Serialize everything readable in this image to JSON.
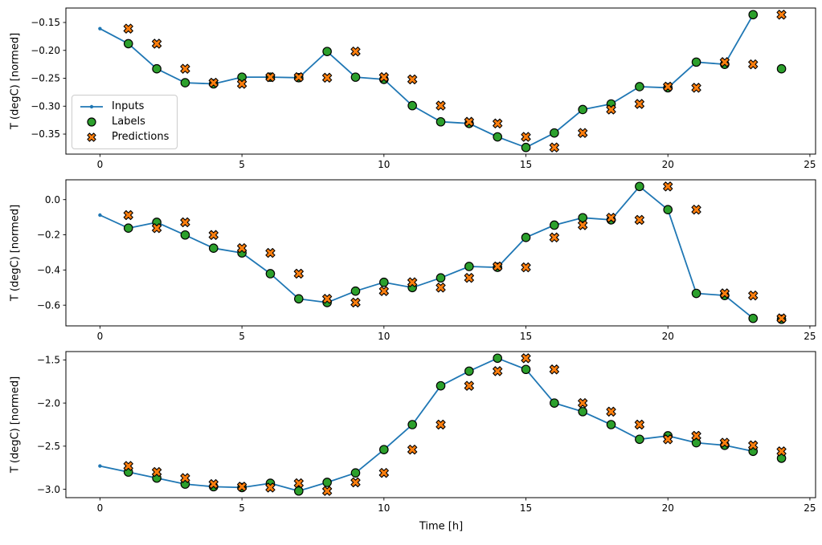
{
  "colors": {
    "inputs": "#1f77b4",
    "labels": "#2ca02c",
    "predictions": "#ff7f0e",
    "marker_edge": "#000000",
    "axis": "#000000",
    "background": "#ffffff"
  },
  "legend": {
    "items": [
      {
        "name": "inputs",
        "label": "Inputs",
        "marker": "line-dot"
      },
      {
        "name": "labels",
        "label": "Labels",
        "marker": "circle"
      },
      {
        "name": "predictions",
        "label": "Predictions",
        "marker": "X"
      }
    ]
  },
  "axes": {
    "xlabel": "Time [h]",
    "xlim": [
      -1.2,
      25.2
    ],
    "xticks": {
      "values": [
        0,
        5,
        10,
        15,
        20,
        25
      ],
      "labels": [
        "0",
        "5",
        "10",
        "15",
        "20",
        "25"
      ]
    }
  },
  "chart_data": [
    {
      "type": "line+scatter",
      "ylabel": "T (degC) [normed]",
      "yticks": {
        "values": [
          -0.15,
          -0.2,
          -0.25,
          -0.3,
          -0.35
        ],
        "labels": [
          "−0.15",
          "−0.20",
          "−0.25",
          "−0.30",
          "−0.35"
        ]
      },
      "series": [
        {
          "name": "Inputs",
          "type": "line",
          "marker": "dot",
          "color": "#1f77b4",
          "x": [
            0,
            1,
            2,
            3,
            4,
            5,
            6,
            7,
            8,
            9,
            10,
            11,
            12,
            13,
            14,
            15,
            16,
            17,
            18,
            19,
            20,
            21,
            22,
            23
          ],
          "y": [
            -0.161,
            -0.188,
            -0.233,
            -0.258,
            -0.26,
            -0.248,
            -0.248,
            -0.249,
            -0.202,
            -0.248,
            -0.252,
            -0.299,
            -0.328,
            -0.331,
            -0.355,
            -0.374,
            -0.348,
            -0.306,
            -0.296,
            -0.265,
            -0.267,
            -0.221,
            -0.225,
            -0.136
          ]
        },
        {
          "name": "Labels",
          "type": "scatter",
          "marker": "circle",
          "color": "#2ca02c",
          "x": [
            1,
            2,
            3,
            4,
            5,
            6,
            7,
            8,
            9,
            10,
            11,
            12,
            13,
            14,
            15,
            16,
            17,
            18,
            19,
            20,
            21,
            22,
            23,
            24
          ],
          "y": [
            -0.188,
            -0.233,
            -0.258,
            -0.26,
            -0.248,
            -0.248,
            -0.249,
            -0.202,
            -0.248,
            -0.252,
            -0.299,
            -0.328,
            -0.331,
            -0.355,
            -0.374,
            -0.348,
            -0.306,
            -0.296,
            -0.265,
            -0.267,
            -0.221,
            -0.225,
            -0.136,
            -0.233
          ]
        },
        {
          "name": "Predictions",
          "type": "scatter",
          "marker": "X",
          "color": "#ff7f0e",
          "x": [
            1,
            2,
            3,
            4,
            5,
            6,
            7,
            8,
            9,
            10,
            11,
            12,
            13,
            14,
            15,
            16,
            17,
            18,
            19,
            20,
            21,
            22,
            23,
            24
          ],
          "y": [
            -0.161,
            -0.188,
            -0.233,
            -0.258,
            -0.26,
            -0.248,
            -0.248,
            -0.249,
            -0.202,
            -0.248,
            -0.252,
            -0.299,
            -0.328,
            -0.331,
            -0.355,
            -0.374,
            -0.348,
            -0.306,
            -0.296,
            -0.265,
            -0.267,
            -0.221,
            -0.225,
            -0.136
          ]
        }
      ]
    },
    {
      "type": "line+scatter",
      "ylabel": "T (degC) [normed]",
      "yticks": {
        "values": [
          0.0,
          -0.2,
          -0.4,
          -0.6
        ],
        "labels": [
          "0.0",
          "−0.2",
          "−0.4",
          "−0.6"
        ]
      },
      "series": [
        {
          "name": "Inputs",
          "type": "line",
          "marker": "dot",
          "color": "#1f77b4",
          "x": [
            0,
            1,
            2,
            3,
            4,
            5,
            6,
            7,
            8,
            9,
            10,
            11,
            12,
            13,
            14,
            15,
            16,
            17,
            18,
            19,
            20,
            21,
            22,
            23
          ],
          "y": [
            -0.088,
            -0.162,
            -0.129,
            -0.201,
            -0.276,
            -0.303,
            -0.421,
            -0.564,
            -0.585,
            -0.52,
            -0.47,
            -0.5,
            -0.445,
            -0.38,
            -0.385,
            -0.215,
            -0.145,
            -0.103,
            -0.115,
            0.075,
            -0.057,
            -0.533,
            -0.545,
            -0.675
          ]
        },
        {
          "name": "Labels",
          "type": "scatter",
          "marker": "circle",
          "color": "#2ca02c",
          "x": [
            1,
            2,
            3,
            4,
            5,
            6,
            7,
            8,
            9,
            10,
            11,
            12,
            13,
            14,
            15,
            16,
            17,
            18,
            19,
            20,
            21,
            22,
            23,
            24
          ],
          "y": [
            -0.162,
            -0.129,
            -0.201,
            -0.276,
            -0.303,
            -0.421,
            -0.564,
            -0.585,
            -0.52,
            -0.47,
            -0.5,
            -0.445,
            -0.38,
            -0.385,
            -0.215,
            -0.145,
            -0.103,
            -0.115,
            0.075,
            -0.057,
            -0.533,
            -0.545,
            -0.675,
            -0.68
          ]
        },
        {
          "name": "Predictions",
          "type": "scatter",
          "marker": "X",
          "color": "#ff7f0e",
          "x": [
            1,
            2,
            3,
            4,
            5,
            6,
            7,
            8,
            9,
            10,
            11,
            12,
            13,
            14,
            15,
            16,
            17,
            18,
            19,
            20,
            21,
            22,
            23,
            24
          ],
          "y": [
            -0.088,
            -0.162,
            -0.129,
            -0.201,
            -0.276,
            -0.303,
            -0.421,
            -0.564,
            -0.585,
            -0.52,
            -0.47,
            -0.5,
            -0.445,
            -0.38,
            -0.385,
            -0.215,
            -0.145,
            -0.103,
            -0.115,
            0.075,
            -0.057,
            -0.533,
            -0.545,
            -0.675
          ]
        }
      ]
    },
    {
      "type": "line+scatter",
      "ylabel": "T (degC) [normed]",
      "yticks": {
        "values": [
          -1.5,
          -2.0,
          -2.5,
          -3.0
        ],
        "labels": [
          "−1.5",
          "−2.0",
          "−2.5",
          "−3.0"
        ]
      },
      "series": [
        {
          "name": "Inputs",
          "type": "line",
          "marker": "dot",
          "color": "#1f77b4",
          "x": [
            0,
            1,
            2,
            3,
            4,
            5,
            6,
            7,
            8,
            9,
            10,
            11,
            12,
            13,
            14,
            15,
            16,
            17,
            18,
            19,
            20,
            21,
            22,
            23
          ],
          "y": [
            -2.73,
            -2.8,
            -2.87,
            -2.94,
            -2.97,
            -2.98,
            -2.93,
            -3.02,
            -2.92,
            -2.81,
            -2.54,
            -2.25,
            -1.8,
            -1.63,
            -1.48,
            -1.61,
            -2.0,
            -2.1,
            -2.25,
            -2.42,
            -2.38,
            -2.46,
            -2.49,
            -2.56
          ]
        },
        {
          "name": "Labels",
          "type": "scatter",
          "marker": "circle",
          "color": "#2ca02c",
          "x": [
            1,
            2,
            3,
            4,
            5,
            6,
            7,
            8,
            9,
            10,
            11,
            12,
            13,
            14,
            15,
            16,
            17,
            18,
            19,
            20,
            21,
            22,
            23,
            24
          ],
          "y": [
            -2.8,
            -2.87,
            -2.94,
            -2.97,
            -2.98,
            -2.93,
            -3.02,
            -2.92,
            -2.81,
            -2.54,
            -2.25,
            -1.8,
            -1.63,
            -1.48,
            -1.61,
            -2.0,
            -2.1,
            -2.25,
            -2.42,
            -2.38,
            -2.46,
            -2.49,
            -2.56,
            -2.64
          ]
        },
        {
          "name": "Predictions",
          "type": "scatter",
          "marker": "X",
          "color": "#ff7f0e",
          "x": [
            1,
            2,
            3,
            4,
            5,
            6,
            7,
            8,
            9,
            10,
            11,
            12,
            13,
            14,
            15,
            16,
            17,
            18,
            19,
            20,
            21,
            22,
            23,
            24
          ],
          "y": [
            -2.73,
            -2.8,
            -2.87,
            -2.94,
            -2.97,
            -2.98,
            -2.93,
            -3.02,
            -2.92,
            -2.81,
            -2.54,
            -2.25,
            -1.8,
            -1.63,
            -1.48,
            -1.61,
            -2.0,
            -2.1,
            -2.25,
            -2.42,
            -2.38,
            -2.46,
            -2.49,
            -2.56
          ]
        }
      ]
    }
  ]
}
